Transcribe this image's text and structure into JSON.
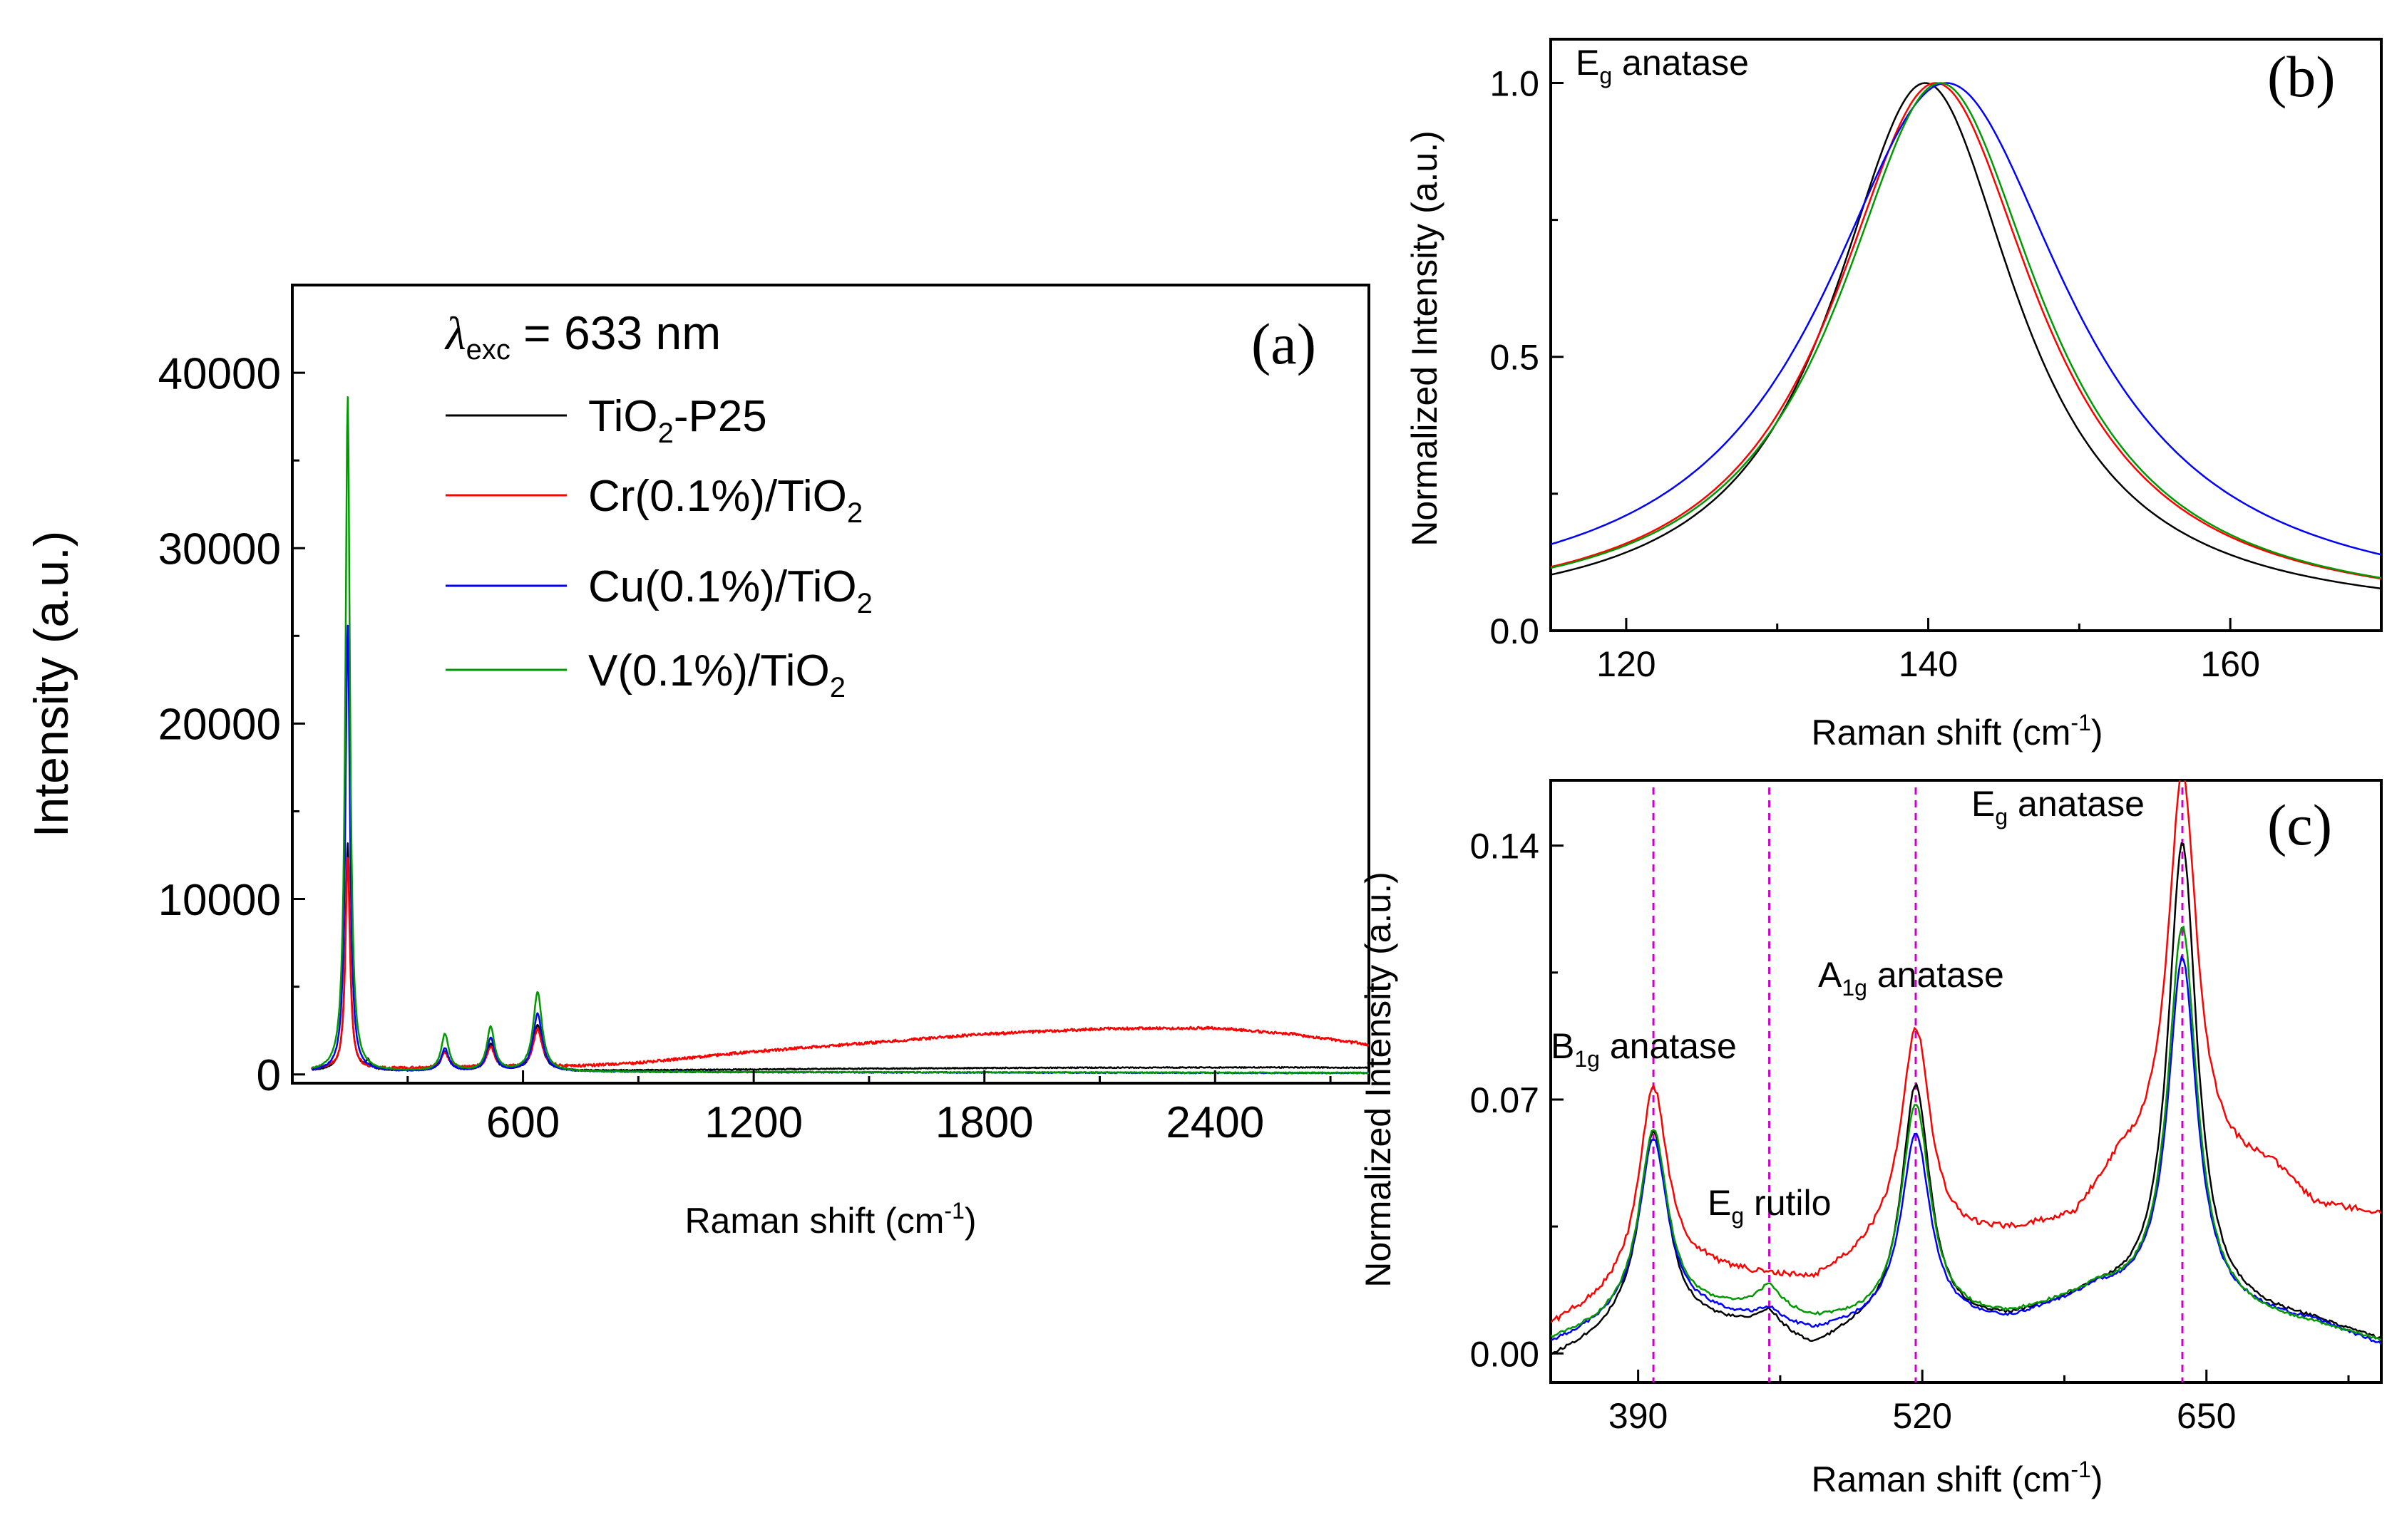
{
  "chart_data": [
    {
      "id": "a",
      "type": "line",
      "panel_label": "(a)",
      "xlabel": "Raman shift (cm",
      "xlabel_sup": "-1",
      "xlabel_close": ")",
      "ylabel": "Intensity (a.u.)",
      "xlim": [
        0,
        2800
      ],
      "ylim": [
        -500,
        45000
      ],
      "xticks": [
        600,
        1200,
        1800,
        2400
      ],
      "yticks": [
        0,
        10000,
        20000,
        30000,
        40000
      ],
      "annotation": {
        "symbol": "λ",
        "sub": "exc",
        "rest": " = 633 nm"
      },
      "legend": [
        {
          "base": "TiO",
          "sub": "2",
          "tail": "-P25",
          "color": "#000000"
        },
        {
          "base": "Cr(0.1%)/TiO",
          "sub": "2",
          "tail": "",
          "color": "#ff0000"
        },
        {
          "base": "Cu(0.1%)/TiO",
          "sub": "2",
          "tail": "",
          "color": "#0000ff"
        },
        {
          "base": "V(0.1%)/TiO",
          "sub": "2",
          "tail": "",
          "color": "#009900"
        }
      ],
      "series": [
        {
          "name": "TiO2-P25",
          "color": "#000000",
          "baseline": [
            [
              0,
              200
            ],
            [
              700,
              200
            ],
            [
              1000,
              250
            ],
            [
              1500,
              330
            ],
            [
              2000,
              380
            ],
            [
              2600,
              400
            ],
            [
              2800,
              380
            ]
          ],
          "peaks": [
            [
              144,
              13000,
              7
            ],
            [
              197,
              500,
              6
            ],
            [
              397,
              1100,
              12
            ],
            [
              516,
              1500,
              12
            ],
            [
              638,
              2600,
              14
            ]
          ]
        },
        {
          "name": "Cr(0.1%)/TiO2",
          "color": "#ff0000",
          "baseline": [
            [
              0,
              300
            ],
            [
              600,
              350
            ],
            [
              700,
              400
            ],
            [
              900,
              650
            ],
            [
              1200,
              1300
            ],
            [
              1500,
              1800
            ],
            [
              1800,
              2300
            ],
            [
              2100,
              2600
            ],
            [
              2400,
              2650
            ],
            [
              2600,
              2300
            ],
            [
              2800,
              1700
            ]
          ],
          "peaks": [
            [
              144,
              12000,
              7
            ],
            [
              397,
              900,
              12
            ],
            [
              516,
              1200,
              12
            ],
            [
              638,
              2200,
              14
            ]
          ]
        },
        {
          "name": "Cu(0.1%)/TiO2",
          "color": "#0000ff",
          "baseline": [
            [
              0,
              150
            ],
            [
              700,
              150
            ],
            [
              1300,
              120
            ],
            [
              2000,
              100
            ],
            [
              2800,
              80
            ]
          ],
          "peaks": [
            [
              144,
              25500,
              7
            ],
            [
              397,
              1300,
              12
            ],
            [
              516,
              1900,
              12
            ],
            [
              638,
              3300,
              14
            ]
          ]
        },
        {
          "name": "V(0.1%)/TiO2",
          "color": "#009900",
          "baseline": [
            [
              0,
              150
            ],
            [
              700,
              150
            ],
            [
              1300,
              130
            ],
            [
              2000,
              110
            ],
            [
              2800,
              90
            ]
          ],
          "peaks": [
            [
              144,
              38500,
              7
            ],
            [
              397,
              2100,
              12
            ],
            [
              516,
              2500,
              12
            ],
            [
              638,
              4500,
              14
            ]
          ]
        }
      ]
    },
    {
      "id": "b",
      "type": "line",
      "panel_label": "(b)",
      "xlabel": "Raman shift (cm",
      "xlabel_sup": "-1",
      "xlabel_close": ")",
      "ylabel": "Normalized Intensity (a.u.)",
      "xlim": [
        115,
        170
      ],
      "ylim": [
        0,
        1.08
      ],
      "xticks": [
        120,
        140,
        160
      ],
      "yticks": [
        0.0,
        0.5,
        1.0
      ],
      "ytick_labels": [
        "0.0",
        "0.5",
        "1.0"
      ],
      "annotation": {
        "main": "E",
        "sub": "g",
        "rest": " anatase"
      },
      "series": [
        {
          "name": "TiO2-P25",
          "color": "#000000",
          "center": 139.8,
          "width": 7.5,
          "floor": 0.02
        },
        {
          "name": "Cr(0.1%)/TiO2",
          "color": "#ff0000",
          "center": 140.5,
          "width": 8.2,
          "floor": 0.025
        },
        {
          "name": "Cu(0.1%)/TiO2",
          "color": "#0000ff",
          "center": 141.2,
          "width": 10.0,
          "floor": 0.035
        },
        {
          "name": "V(0.1%)/TiO2",
          "color": "#009900",
          "center": 140.8,
          "width": 8.2,
          "floor": 0.025
        }
      ]
    },
    {
      "id": "c",
      "type": "line",
      "panel_label": "(c)",
      "xlabel": "Raman shift (cm",
      "xlabel_sup": "-1",
      "xlabel_close": ")",
      "ylabel": "Normalized Intensity (a.u.)",
      "xlim": [
        350,
        730
      ],
      "ylim": [
        -0.008,
        0.158
      ],
      "xticks": [
        390,
        520,
        650
      ],
      "yticks": [
        0.0,
        0.07,
        0.14
      ],
      "ytick_labels": [
        "0.00",
        "0.07",
        "0.14"
      ],
      "marker_lines": [
        397,
        450,
        517,
        639
      ],
      "annotations": [
        {
          "main": "B",
          "sub": "1g",
          "rest": " anatase"
        },
        {
          "main": "E",
          "sub": "g",
          "rest": " rutilo"
        },
        {
          "main": "A",
          "sub": "1g",
          "rest": " anatase"
        },
        {
          "main": "E",
          "sub": "g",
          "rest": " anatase"
        }
      ],
      "series": [
        {
          "name": "TiO2-P25",
          "color": "#000000",
          "baseline": [
            [
              350,
              -0.002
            ],
            [
              380,
              0.005
            ],
            [
              420,
              0.007
            ],
            [
              450,
              0.006
            ],
            [
              470,
              0.0
            ],
            [
              490,
              0.005
            ],
            [
              560,
              0.008
            ],
            [
              600,
              0.015
            ],
            [
              700,
              0.008
            ],
            [
              730,
              0.003
            ]
          ],
          "peaks": [
            [
              397,
              0.055,
              8
            ],
            [
              450,
              0.004,
              6
            ],
            [
              517,
              0.067,
              8
            ],
            [
              639,
              0.128,
              8
            ]
          ]
        },
        {
          "name": "Cr(0.1%)/TiO2",
          "color": "#ff0000",
          "baseline": [
            [
              350,
              0.007
            ],
            [
              380,
              0.015
            ],
            [
              420,
              0.022
            ],
            [
              470,
              0.019
            ],
            [
              500,
              0.028
            ],
            [
              560,
              0.032
            ],
            [
              590,
              0.036
            ],
            [
              610,
              0.05
            ],
            [
              680,
              0.05
            ],
            [
              700,
              0.04
            ],
            [
              730,
              0.038
            ]
          ],
          "peaks": [
            [
              397,
              0.055,
              8
            ],
            [
              517,
              0.06,
              8
            ],
            [
              639,
              0.11,
              8
            ]
          ]
        },
        {
          "name": "Cu(0.1%)/TiO2",
          "color": "#0000ff",
          "baseline": [
            [
              350,
              0.002
            ],
            [
              380,
              0.008
            ],
            [
              420,
              0.01
            ],
            [
              450,
              0.008
            ],
            [
              470,
              0.005
            ],
            [
              500,
              0.008
            ],
            [
              560,
              0.008
            ],
            [
              600,
              0.016
            ],
            [
              700,
              0.008
            ],
            [
              730,
              0.002
            ]
          ],
          "peaks": [
            [
              397,
              0.05,
              8
            ],
            [
              450,
              0.003,
              6
            ],
            [
              517,
              0.052,
              8
            ],
            [
              639,
              0.096,
              8
            ]
          ]
        },
        {
          "name": "V(0.1%)/TiO2",
          "color": "#009900",
          "baseline": [
            [
              350,
              0.003
            ],
            [
              380,
              0.008
            ],
            [
              420,
              0.011
            ],
            [
              450,
              0.012
            ],
            [
              470,
              0.008
            ],
            [
              500,
              0.008
            ],
            [
              560,
              0.009
            ],
            [
              600,
              0.016
            ],
            [
              700,
              0.007
            ],
            [
              730,
              0.003
            ]
          ],
          "peaks": [
            [
              397,
              0.052,
              8
            ],
            [
              450,
              0.005,
              6
            ],
            [
              517,
              0.06,
              8
            ],
            [
              639,
              0.105,
              8
            ]
          ]
        }
      ]
    }
  ]
}
